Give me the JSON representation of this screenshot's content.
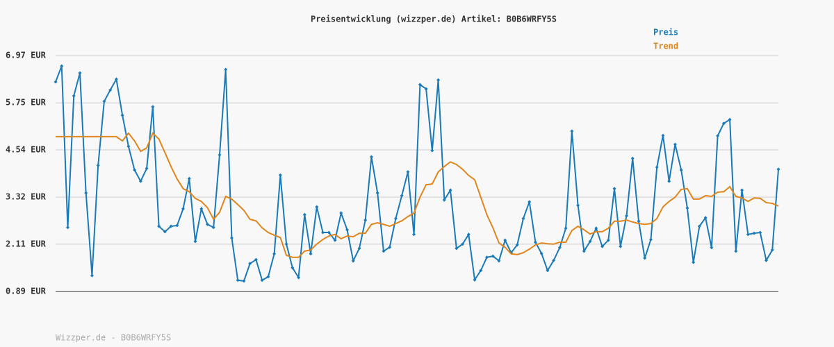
{
  "chart_data": {
    "type": "line",
    "title": "Preisentwicklung (wizzper.de) Artikel: B0B6WRFY5S",
    "footer": "Wizzper.de - B0B6WRFY5S",
    "ylim": [
      0.89,
      6.97
    ],
    "yticks": [
      {
        "value": 0.89,
        "label": "0.89 EUR"
      },
      {
        "value": 2.11,
        "label": "2.11 EUR"
      },
      {
        "value": 3.32,
        "label": "3.32 EUR"
      },
      {
        "value": 4.54,
        "label": "4.54 EUR"
      },
      {
        "value": 5.75,
        "label": "5.75 EUR"
      },
      {
        "value": 6.97,
        "label": "6.97 EUR"
      }
    ],
    "grid": true,
    "legend": "top-right",
    "series": [
      {
        "name": "Preis",
        "color": "#1a7ab8",
        "markers": true,
        "values": [
          6.29,
          6.7,
          2.54,
          5.93,
          6.52,
          3.43,
          1.3,
          4.14,
          5.79,
          6.08,
          6.36,
          5.43,
          4.63,
          4.02,
          3.73,
          4.06,
          5.65,
          2.57,
          2.43,
          2.57,
          2.59,
          3.02,
          3.8,
          2.18,
          3.02,
          2.62,
          2.54,
          4.41,
          6.61,
          2.27,
          1.18,
          1.16,
          1.61,
          1.71,
          1.18,
          1.27,
          1.86,
          3.89,
          2.11,
          1.5,
          1.25,
          2.87,
          1.86,
          3.07,
          2.41,
          2.41,
          2.21,
          2.91,
          2.48,
          1.68,
          2.0,
          2.73,
          4.36,
          3.43,
          1.93,
          2.03,
          2.77,
          3.36,
          3.97,
          2.36,
          6.22,
          6.11,
          4.52,
          6.34,
          3.25,
          3.5,
          2.0,
          2.11,
          2.36,
          1.19,
          1.43,
          1.77,
          1.8,
          1.68,
          2.21,
          1.89,
          2.09,
          2.77,
          3.2,
          2.16,
          1.87,
          1.43,
          1.69,
          2.02,
          2.52,
          5.02,
          3.11,
          1.93,
          2.18,
          2.52,
          2.05,
          2.21,
          3.54,
          2.05,
          2.84,
          4.32,
          2.7,
          1.75,
          2.23,
          4.09,
          4.91,
          3.73,
          4.68,
          4.02,
          3.04,
          1.64,
          2.57,
          2.79,
          2.02,
          4.9,
          5.22,
          5.32,
          1.93,
          3.5,
          2.36,
          2.39,
          2.41,
          1.69,
          1.96,
          4.04
        ]
      },
      {
        "name": "Trend",
        "color": "#e0851c",
        "markers": false,
        "values": [
          4.88,
          4.88,
          4.88,
          4.88,
          4.88,
          4.88,
          4.88,
          4.88,
          4.88,
          4.88,
          4.88,
          4.77,
          4.97,
          4.77,
          4.5,
          4.59,
          4.97,
          4.82,
          4.47,
          4.11,
          3.79,
          3.54,
          3.46,
          3.29,
          3.21,
          3.05,
          2.75,
          2.93,
          3.34,
          3.27,
          3.13,
          2.98,
          2.75,
          2.71,
          2.53,
          2.41,
          2.34,
          2.28,
          1.82,
          1.77,
          1.77,
          1.93,
          1.96,
          2.11,
          2.23,
          2.32,
          2.36,
          2.25,
          2.32,
          2.3,
          2.39,
          2.39,
          2.62,
          2.66,
          2.62,
          2.57,
          2.64,
          2.71,
          2.82,
          2.91,
          3.32,
          3.64,
          3.66,
          3.97,
          4.11,
          4.23,
          4.16,
          4.04,
          3.88,
          3.77,
          3.32,
          2.87,
          2.53,
          2.14,
          2.03,
          1.86,
          1.84,
          1.89,
          1.98,
          2.09,
          2.14,
          2.12,
          2.11,
          2.16,
          2.16,
          2.46,
          2.57,
          2.48,
          2.37,
          2.43,
          2.43,
          2.52,
          2.7,
          2.7,
          2.73,
          2.68,
          2.64,
          2.62,
          2.64,
          2.77,
          3.07,
          3.21,
          3.32,
          3.52,
          3.54,
          3.27,
          3.27,
          3.36,
          3.34,
          3.45,
          3.46,
          3.59,
          3.34,
          3.3,
          3.21,
          3.3,
          3.29,
          3.18,
          3.16,
          3.09
        ]
      }
    ]
  }
}
